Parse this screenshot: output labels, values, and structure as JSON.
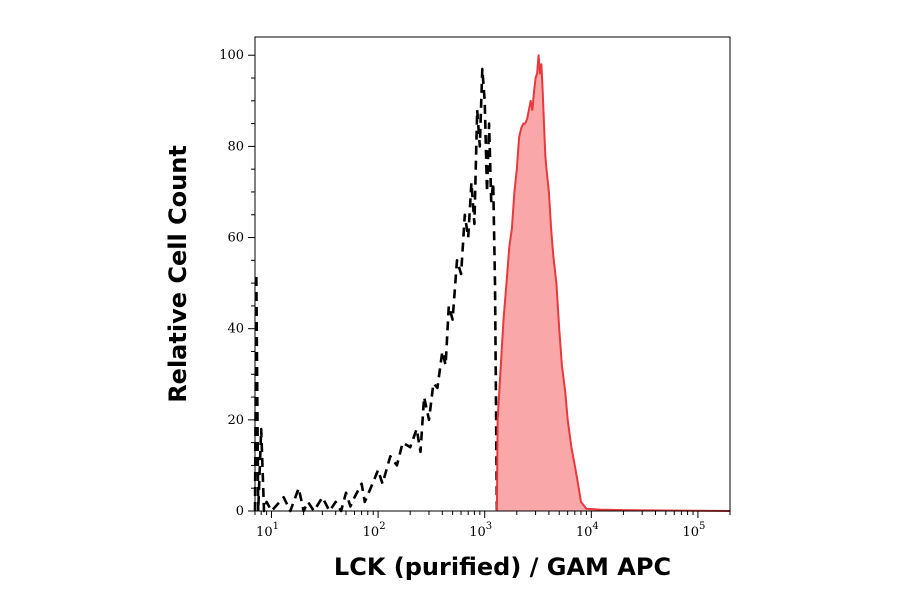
{
  "chart_data": {
    "type": "area",
    "title": "",
    "xlabel": "LCK (purified) / GAM APC",
    "ylabel": "Relative Cell Count",
    "x_scale": "log",
    "xlim": [
      7,
      200000
    ],
    "ylim": [
      0,
      104
    ],
    "grid": false,
    "legend": "none",
    "x_ticks": [
      {
        "value": 10,
        "base": "10",
        "exp": "1"
      },
      {
        "value": 100,
        "base": "10",
        "exp": "2"
      },
      {
        "value": 1000,
        "base": "10",
        "exp": "3"
      },
      {
        "value": 10000,
        "base": "10",
        "exp": "4"
      },
      {
        "value": 100000,
        "base": "10",
        "exp": "5"
      }
    ],
    "y_ticks": [
      {
        "value": 0,
        "label": "0"
      },
      {
        "value": 20,
        "label": "20"
      },
      {
        "value": 40,
        "label": "40"
      },
      {
        "value": 60,
        "label": "60"
      },
      {
        "value": 80,
        "label": "80"
      },
      {
        "value": 100,
        "label": "100"
      }
    ],
    "series": [
      {
        "style": "dashed-black-outline",
        "color": "#000000",
        "points": [
          [
            7,
            0
          ],
          [
            7.2,
            52
          ],
          [
            7.5,
            0
          ],
          [
            8,
            18
          ],
          [
            8.5,
            0
          ],
          [
            9,
            2
          ],
          [
            10,
            0
          ],
          [
            13,
            3
          ],
          [
            15,
            0
          ],
          [
            18,
            5
          ],
          [
            20,
            0
          ],
          [
            22,
            2
          ],
          [
            25,
            0
          ],
          [
            30,
            3
          ],
          [
            35,
            0
          ],
          [
            40,
            2
          ],
          [
            45,
            0
          ],
          [
            50,
            4
          ],
          [
            55,
            1
          ],
          [
            60,
            3
          ],
          [
            70,
            6
          ],
          [
            75,
            2
          ],
          [
            85,
            5
          ],
          [
            100,
            9
          ],
          [
            110,
            6
          ],
          [
            130,
            12
          ],
          [
            150,
            10
          ],
          [
            170,
            15
          ],
          [
            200,
            14
          ],
          [
            230,
            18
          ],
          [
            250,
            13
          ],
          [
            270,
            25
          ],
          [
            300,
            20
          ],
          [
            330,
            28
          ],
          [
            360,
            27
          ],
          [
            400,
            35
          ],
          [
            430,
            32
          ],
          [
            460,
            45
          ],
          [
            500,
            42
          ],
          [
            550,
            55
          ],
          [
            600,
            52
          ],
          [
            650,
            65
          ],
          [
            700,
            60
          ],
          [
            750,
            72
          ],
          [
            800,
            63
          ],
          [
            850,
            88
          ],
          [
            900,
            80
          ],
          [
            950,
            97
          ],
          [
            1000,
            90
          ],
          [
            1050,
            70
          ],
          [
            1100,
            85
          ],
          [
            1150,
            68
          ],
          [
            1200,
            72
          ],
          [
            1250,
            50
          ],
          [
            1300,
            0
          ],
          [
            1400,
            0
          ]
        ]
      },
      {
        "style": "filled-red",
        "color": "#e8393b",
        "fill": "#f9a7a8",
        "points": [
          [
            1300,
            0
          ],
          [
            1320,
            20
          ],
          [
            1400,
            30
          ],
          [
            1500,
            42
          ],
          [
            1600,
            50
          ],
          [
            1700,
            58
          ],
          [
            1800,
            62
          ],
          [
            1900,
            70
          ],
          [
            2000,
            75
          ],
          [
            2100,
            82
          ],
          [
            2200,
            84
          ],
          [
            2300,
            85
          ],
          [
            2400,
            85
          ],
          [
            2500,
            86
          ],
          [
            2600,
            88
          ],
          [
            2700,
            90
          ],
          [
            2800,
            88
          ],
          [
            2900,
            92
          ],
          [
            3000,
            95
          ],
          [
            3100,
            96
          ],
          [
            3200,
            100
          ],
          [
            3300,
            96
          ],
          [
            3400,
            98
          ],
          [
            3500,
            92
          ],
          [
            3600,
            85
          ],
          [
            3700,
            78
          ],
          [
            3800,
            75
          ],
          [
            4000,
            70
          ],
          [
            4200,
            62
          ],
          [
            4400,
            56
          ],
          [
            4700,
            50
          ],
          [
            5000,
            40
          ],
          [
            5300,
            32
          ],
          [
            5700,
            26
          ],
          [
            6000,
            20
          ],
          [
            6500,
            14
          ],
          [
            7000,
            10
          ],
          [
            7500,
            6
          ],
          [
            8000,
            2
          ],
          [
            9000,
            0.5
          ],
          [
            12000,
            0.3
          ],
          [
            20000,
            0.2
          ],
          [
            200000,
            0
          ]
        ]
      }
    ]
  }
}
